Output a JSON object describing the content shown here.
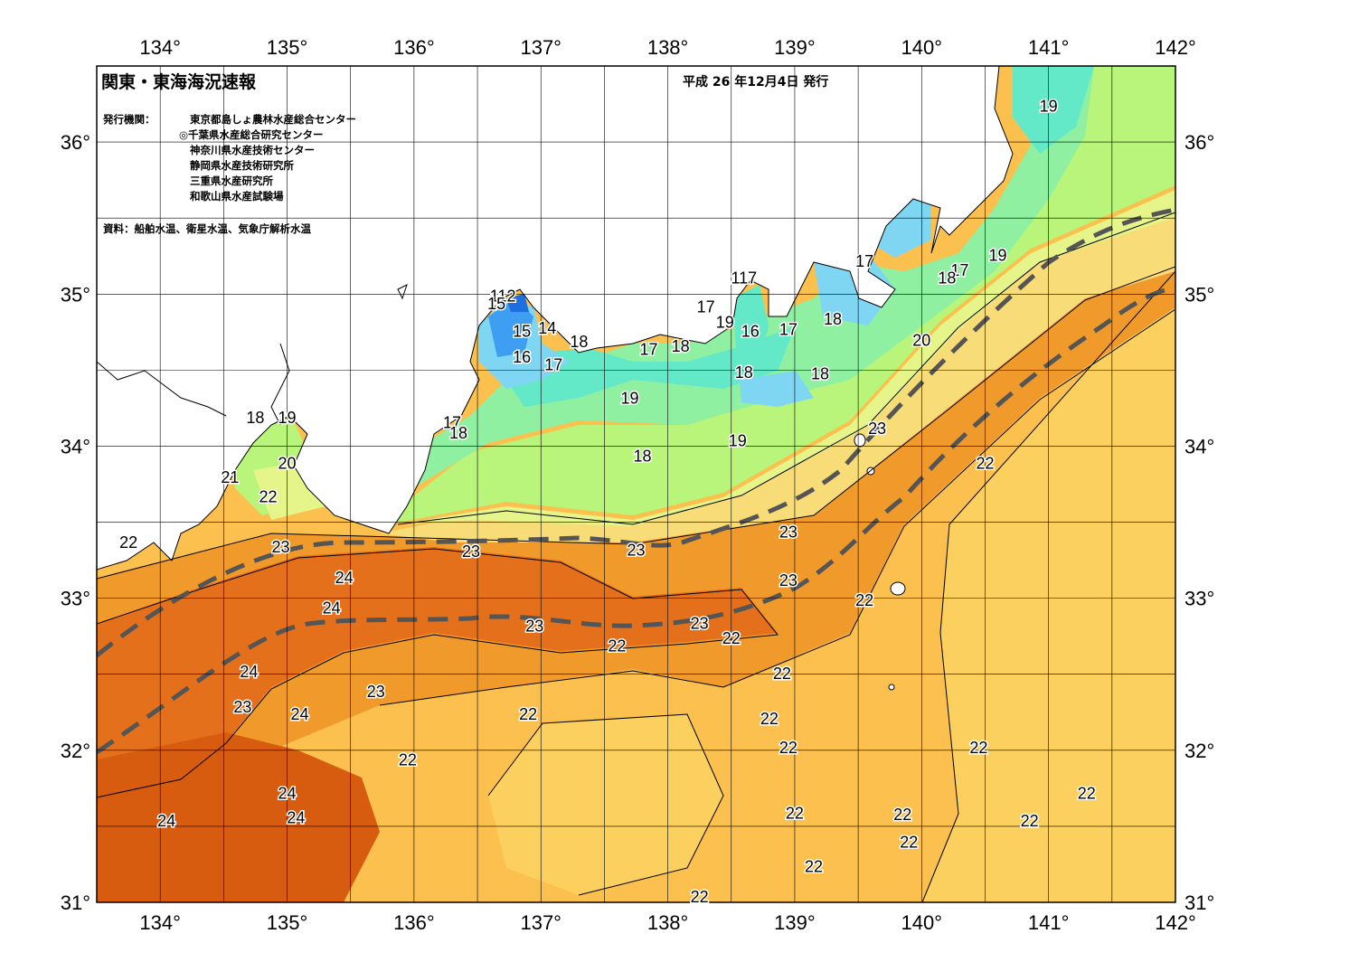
{
  "header": {
    "title": "関東・東海海況速報",
    "issued": "平成 26 年12月4日 発行",
    "agency_label": "発行機関：",
    "agencies": [
      "東京都島しょ農林水産総合センター",
      "◎千葉県水産総合研究センター",
      "神奈川県水産技術センター",
      "静岡県水産技術研究所",
      "三重県水産研究所",
      "和歌山県水産試験場"
    ],
    "source": "資料：船舶水温、衛星水温、気象庁解析水温"
  },
  "axes": {
    "lon_labels": [
      "134°",
      "135°",
      "136°",
      "137°",
      "138°",
      "139°",
      "140°",
      "141°",
      "142°"
    ],
    "lon_values": [
      134,
      135,
      136,
      137,
      138,
      139,
      140,
      141,
      142
    ],
    "lat_labels": [
      "36°",
      "35°",
      "34°",
      "33°",
      "32°",
      "31°"
    ],
    "lat_values": [
      36,
      35,
      34,
      33,
      32,
      31
    ],
    "lon_range": [
      133.5,
      142
    ],
    "lat_range": [
      31,
      36.5
    ]
  },
  "colors": {
    "t14": "#1d6fe0",
    "t15": "#3d9ef2",
    "t16": "#7fd6f2",
    "t17": "#63e8c8",
    "t18": "#8ef0a0",
    "t19": "#b8f57a",
    "t20": "#e6f58a",
    "t21": "#f8dc78",
    "t22": "#fcc04f",
    "t23": "#f09a2c",
    "t24": "#e4701c",
    "t25": "#d85c10",
    "land": "#ffffff",
    "kuroshio_axis": "#555555"
  },
  "temperature_labels": [
    {
      "text": "19",
      "lon": 141.0,
      "lat": 36.2
    },
    {
      "text": "19",
      "lon": 140.6,
      "lat": 35.22
    },
    {
      "text": "17",
      "lon": 139.55,
      "lat": 35.18
    },
    {
      "text": "17",
      "lon": 140.3,
      "lat": 35.12
    },
    {
      "text": "18",
      "lon": 140.2,
      "lat": 35.07
    },
    {
      "text": "117",
      "lon": 138.6,
      "lat": 35.07
    },
    {
      "text": "17",
      "lon": 138.3,
      "lat": 34.88
    },
    {
      "text": "19",
      "lon": 138.45,
      "lat": 34.78
    },
    {
      "text": "16",
      "lon": 138.65,
      "lat": 34.72
    },
    {
      "text": "17",
      "lon": 138.95,
      "lat": 34.73
    },
    {
      "text": "18",
      "lon": 139.3,
      "lat": 34.8
    },
    {
      "text": "18",
      "lon": 137.3,
      "lat": 34.65
    },
    {
      "text": "17",
      "lon": 137.85,
      "lat": 34.6
    },
    {
      "text": "18",
      "lon": 138.1,
      "lat": 34.62
    },
    {
      "text": "18",
      "lon": 138.6,
      "lat": 34.45
    },
    {
      "text": "18",
      "lon": 139.2,
      "lat": 34.44
    },
    {
      "text": "20",
      "lon": 140.0,
      "lat": 34.66
    },
    {
      "text": "112",
      "lon": 136.7,
      "lat": 34.95
    },
    {
      "text": "15",
      "lon": 136.65,
      "lat": 34.9
    },
    {
      "text": "15",
      "lon": 136.85,
      "lat": 34.72
    },
    {
      "text": "14",
      "lon": 137.05,
      "lat": 34.74
    },
    {
      "text": "16",
      "lon": 136.85,
      "lat": 34.55
    },
    {
      "text": "17",
      "lon": 137.1,
      "lat": 34.5
    },
    {
      "text": "19",
      "lon": 137.7,
      "lat": 34.28
    },
    {
      "text": "18",
      "lon": 134.75,
      "lat": 34.15
    },
    {
      "text": "19",
      "lon": 135.0,
      "lat": 34.15
    },
    {
      "text": "17",
      "lon": 136.3,
      "lat": 34.12
    },
    {
      "text": "18",
      "lon": 136.35,
      "lat": 34.05
    },
    {
      "text": "19",
      "lon": 138.55,
      "lat": 34.0
    },
    {
      "text": "23",
      "lon": 139.65,
      "lat": 34.08
    },
    {
      "text": "18",
      "lon": 137.8,
      "lat": 33.9
    },
    {
      "text": "22",
      "lon": 140.5,
      "lat": 33.85
    },
    {
      "text": "20",
      "lon": 135.0,
      "lat": 33.85
    },
    {
      "text": "21",
      "lon": 134.55,
      "lat": 33.76
    },
    {
      "text": "22",
      "lon": 134.85,
      "lat": 33.63
    },
    {
      "text": "22",
      "lon": 133.75,
      "lat": 33.33
    },
    {
      "text": "23",
      "lon": 134.95,
      "lat": 33.3
    },
    {
      "text": "23",
      "lon": 136.45,
      "lat": 33.27
    },
    {
      "text": "23",
      "lon": 137.75,
      "lat": 33.28
    },
    {
      "text": "23",
      "lon": 138.95,
      "lat": 33.4
    },
    {
      "text": "24",
      "lon": 135.45,
      "lat": 33.1
    },
    {
      "text": "23",
      "lon": 138.95,
      "lat": 33.08
    },
    {
      "text": "22",
      "lon": 139.55,
      "lat": 32.95
    },
    {
      "text": "24",
      "lon": 135.35,
      "lat": 32.9
    },
    {
      "text": "23",
      "lon": 136.95,
      "lat": 32.78
    },
    {
      "text": "23",
      "lon": 138.25,
      "lat": 32.8
    },
    {
      "text": "22",
      "lon": 138.5,
      "lat": 32.7
    },
    {
      "text": "22",
      "lon": 137.6,
      "lat": 32.65
    },
    {
      "text": "24",
      "lon": 134.7,
      "lat": 32.48
    },
    {
      "text": "22",
      "lon": 138.9,
      "lat": 32.47
    },
    {
      "text": "23",
      "lon": 135.7,
      "lat": 32.35
    },
    {
      "text": "23",
      "lon": 134.65,
      "lat": 32.25
    },
    {
      "text": "24",
      "lon": 135.1,
      "lat": 32.2
    },
    {
      "text": "22",
      "lon": 136.9,
      "lat": 32.2
    },
    {
      "text": "22",
      "lon": 138.8,
      "lat": 32.17
    },
    {
      "text": "22",
      "lon": 138.95,
      "lat": 31.98
    },
    {
      "text": "22",
      "lon": 140.45,
      "lat": 31.98
    },
    {
      "text": "22",
      "lon": 135.95,
      "lat": 31.9
    },
    {
      "text": "24",
      "lon": 135.0,
      "lat": 31.68
    },
    {
      "text": "22",
      "lon": 141.3,
      "lat": 31.68
    },
    {
      "text": "24",
      "lon": 135.07,
      "lat": 31.52
    },
    {
      "text": "22",
      "lon": 139.0,
      "lat": 31.55
    },
    {
      "text": "22",
      "lon": 139.85,
      "lat": 31.54
    },
    {
      "text": "24",
      "lon": 134.05,
      "lat": 31.5
    },
    {
      "text": "22",
      "lon": 140.85,
      "lat": 31.5
    },
    {
      "text": "22",
      "lon": 139.9,
      "lat": 31.36
    },
    {
      "text": "22",
      "lon": 139.15,
      "lat": 31.2
    },
    {
      "text": "22",
      "lon": 138.25,
      "lat": 31.0
    }
  ]
}
